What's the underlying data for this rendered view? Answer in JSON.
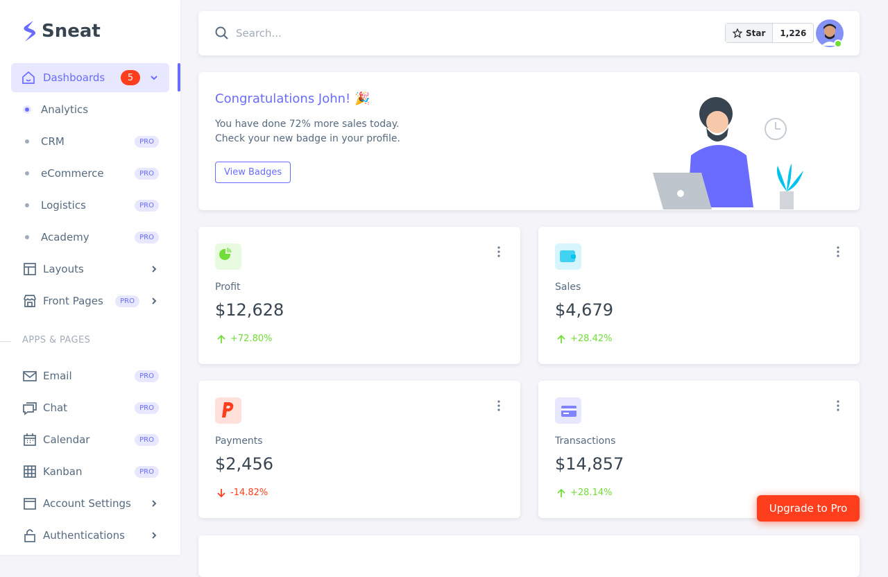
{
  "brand": "Sneat",
  "sidebar": {
    "dashboards": {
      "label": "Dashboards",
      "badge": "5"
    },
    "dashboard_items": [
      {
        "label": "Analytics",
        "active": true
      },
      {
        "label": "CRM",
        "badge": "PRO"
      },
      {
        "label": "eCommerce",
        "badge": "PRO"
      },
      {
        "label": "Logistics",
        "badge": "PRO"
      },
      {
        "label": "Academy",
        "badge": "PRO"
      }
    ],
    "items": [
      {
        "label": "Layouts",
        "icon": "layout",
        "arrow": true
      },
      {
        "label": "Front Pages",
        "icon": "store",
        "badge": "PRO",
        "arrow": true
      }
    ],
    "section": "APPS & PAGES",
    "apps": [
      {
        "label": "Email",
        "icon": "mail",
        "badge": "PRO"
      },
      {
        "label": "Chat",
        "icon": "chat",
        "badge": "PRO"
      },
      {
        "label": "Calendar",
        "icon": "calendar",
        "badge": "PRO"
      },
      {
        "label": "Kanban",
        "icon": "grid",
        "badge": "PRO"
      },
      {
        "label": "Account Settings",
        "icon": "window",
        "arrow": true
      },
      {
        "label": "Authentications",
        "icon": "lock",
        "arrow": true
      }
    ]
  },
  "search": {
    "placeholder": "Search..."
  },
  "github": {
    "label": "Star",
    "count": "1,226"
  },
  "welcome": {
    "title": "Congratulations John! 🎉",
    "lines": [
      "You have done 72% more sales today.",
      "Check your new badge in your profile."
    ],
    "button": "View Badges"
  },
  "stats": [
    {
      "label": "Profit",
      "value": "$12,628",
      "change": "+72.80%",
      "trend": "up",
      "icon": "pie",
      "tint": "#e8fadf",
      "color": "#71dd37"
    },
    {
      "label": "Sales",
      "value": "$4,679",
      "change": "+28.42%",
      "trend": "up",
      "icon": "wallet",
      "tint": "#d7f5fc",
      "color": "#03c3ec"
    },
    {
      "label": "Payments",
      "value": "$2,456",
      "change": "-14.82%",
      "trend": "down",
      "icon": "paypal",
      "tint": "#ffe0db",
      "color": "#ff3e1d"
    },
    {
      "label": "Transactions",
      "value": "$14,857",
      "change": "+28.14%",
      "trend": "up",
      "icon": "card",
      "tint": "#e7e7ff",
      "color": "#696cff"
    }
  ],
  "upgrade": "Upgrade to Pro"
}
